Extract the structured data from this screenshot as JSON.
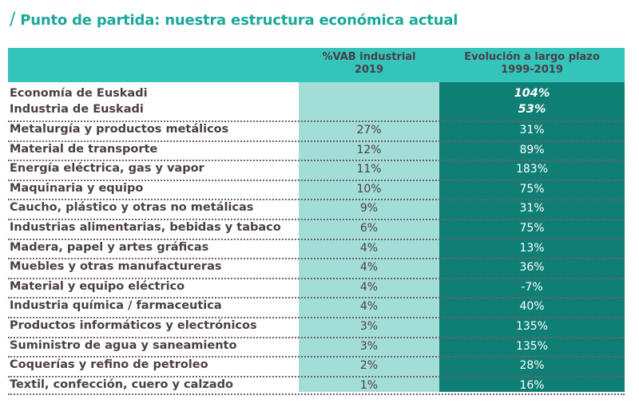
{
  "title": "Punto de partida: nuestra estructura económica actual",
  "title_mark": "/",
  "colors": {
    "accent": "#1aa89a",
    "header": "#34c4ba",
    "light_col": "#a3ddd7",
    "dark_col": "#0f7f76",
    "text": "#4a3f45"
  },
  "table": {
    "headers": [
      {
        "line1": "%VAB industrial",
        "line2": "2019"
      },
      {
        "line1": "Evolución a largo plazo",
        "line2": "1999-2019"
      }
    ],
    "summary": [
      {
        "label": "Economía de Euskadi",
        "evolution": "104%"
      },
      {
        "label": "Industria de Euskadi",
        "evolution": "53%"
      }
    ],
    "rows": [
      {
        "label": "Metalurgía y productos metálicos",
        "vab": "27%",
        "evolution": "31%"
      },
      {
        "label": "Material de transporte",
        "vab": "12%",
        "evolution": "89%"
      },
      {
        "label": "Energía eléctrica, gas y vapor",
        "vab": "11%",
        "evolution": "183%"
      },
      {
        "label": "Maquinaria y equipo",
        "vab": "10%",
        "evolution": "75%"
      },
      {
        "label": "Caucho, plástico y otras no metálicas",
        "vab": "9%",
        "evolution": "31%"
      },
      {
        "label": "Industrias alimentarias, bebidas y tabaco",
        "vab": "6%",
        "evolution": "75%"
      },
      {
        "label": "Madera, papel y artes gráficas",
        "vab": "4%",
        "evolution": "13%"
      },
      {
        "label": "Muebles y otras manufactureras",
        "vab": "4%",
        "evolution": "36%"
      },
      {
        "label": "Material y equipo eléctrico",
        "vab": "4%",
        "evolution": "-7%"
      },
      {
        "label": "Industria química / farmaceutica",
        "vab": "4%",
        "evolution": "40%"
      },
      {
        "label": "Productos informáticos y electrónicos",
        "vab": "3%",
        "evolution": "135%"
      },
      {
        "label": "Suministro de agua y saneamiento",
        "vab": "3%",
        "evolution": "135%"
      },
      {
        "label": "Coquerías y refino de petroleo",
        "vab": "2%",
        "evolution": "28%"
      },
      {
        "label": "Textil, confección, cuero y calzado",
        "vab": "1%",
        "evolution": "16%"
      }
    ]
  }
}
